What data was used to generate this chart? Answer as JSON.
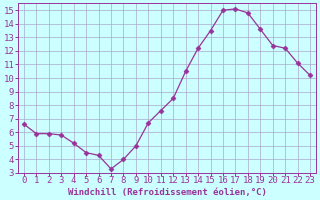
{
  "x": [
    0,
    1,
    2,
    3,
    4,
    5,
    6,
    7,
    8,
    9,
    10,
    11,
    12,
    13,
    14,
    15,
    16,
    17,
    18,
    19,
    20,
    21,
    22,
    23
  ],
  "y": [
    6.6,
    5.9,
    5.9,
    5.8,
    5.2,
    4.5,
    4.3,
    3.3,
    4.0,
    5.0,
    6.7,
    7.6,
    8.5,
    10.5,
    12.2,
    13.5,
    15.0,
    15.1,
    14.8,
    13.6,
    12.4,
    12.2,
    11.1,
    10.2
  ],
  "line_color": "#993399",
  "marker": "D",
  "marker_size": 2.5,
  "bg_color": "#ccffff",
  "grid_color": "#aaaacc",
  "xlabel": "Windchill (Refroidissement éolien,°C)",
  "xlabel_color": "#993399",
  "tick_color": "#993399",
  "xlim": [
    -0.5,
    23.5
  ],
  "ylim": [
    3,
    15.5
  ],
  "yticks": [
    3,
    4,
    5,
    6,
    7,
    8,
    9,
    10,
    11,
    12,
    13,
    14,
    15
  ],
  "xticks": [
    0,
    1,
    2,
    3,
    4,
    5,
    6,
    7,
    8,
    9,
    10,
    11,
    12,
    13,
    14,
    15,
    16,
    17,
    18,
    19,
    20,
    21,
    22,
    23
  ],
  "font_size": 6.5
}
